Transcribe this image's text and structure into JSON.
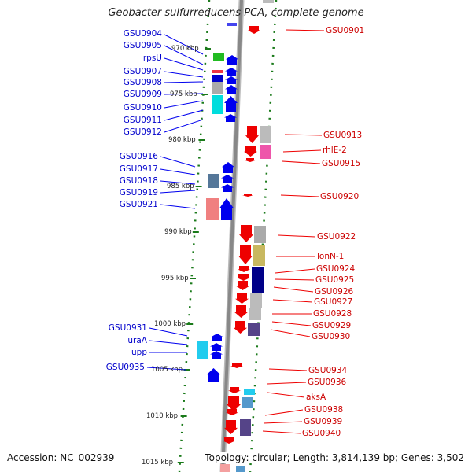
{
  "title": "Geobacter sulfurreducens PCA, complete genome",
  "footer": {
    "accession": "Accession: NC_002939",
    "info": "Topology: circular; Length: 3,814,139 bp; Genes: 3,502"
  },
  "colors": {
    "forward_strand_label": "#0000cc",
    "reverse_strand_label": "#cc0000",
    "forward_arrow": "#0000ee",
    "reverse_arrow": "#ee0000",
    "backbone": "#888888",
    "tick": "#1a7a1a"
  },
  "kbp_ticks": [
    "970 kbp",
    "975 kbp",
    "980 kbp",
    "985 kbp",
    "990 kbp",
    "995 kbp",
    "1000 kbp",
    "1005 kbp",
    "1010 kbp",
    "1015 kbp"
  ],
  "left_labels": [
    "GSU0904",
    "GSU0905",
    "rpsU",
    "GSU0907",
    "GSU0908",
    "GSU0909",
    "GSU0910",
    "GSU0911",
    "GSU0912",
    "GSU0916",
    "GSU0917",
    "GSU0918",
    "GSU0919",
    "GSU0921",
    "GSU0931",
    "uraA",
    "upp",
    "GSU0935"
  ],
  "right_labels": [
    "GSU0901",
    "GSU0913",
    "rhlE-2",
    "GSU0915",
    "GSU0920",
    "GSU0922",
    "lonN-1",
    "GSU0924",
    "GSU0925",
    "GSU0926",
    "GSU0927",
    "GSU0928",
    "GSU0929",
    "GSU0930",
    "GSU0934",
    "GSU0936",
    "aksA",
    "GSU0938",
    "GSU0939",
    "GSU0940"
  ]
}
